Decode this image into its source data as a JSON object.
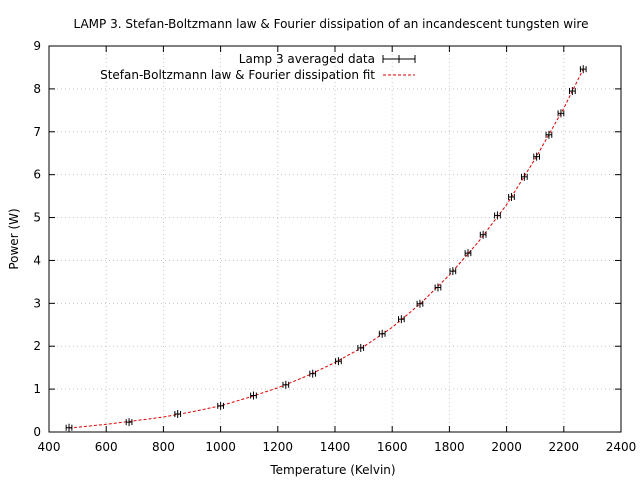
{
  "chart_data": {
    "type": "scatter",
    "title": "LAMP 3. Stefan-Boltzmann law & Fourier dissipation of an incandescent tungsten wire",
    "xlabel": "Temperature (Kelvin)",
    "ylabel": "Power (W)",
    "xlim": [
      400,
      2400
    ],
    "ylim": [
      0,
      9
    ],
    "xticks": [
      "400",
      "600",
      "800",
      "1000",
      "1200",
      "1400",
      "1600",
      "1800",
      "2000",
      "2200",
      "2400"
    ],
    "yticks": [
      "0",
      "1",
      "2",
      "3",
      "4",
      "5",
      "6",
      "7",
      "8",
      "9"
    ],
    "grid": true,
    "legend_position": "top-center",
    "series": [
      {
        "name": "Lamp 3 averaged data",
        "style": "points-with-xerrorbars",
        "color": "#000000",
        "x": [
          470,
          680,
          850,
          1000,
          1115,
          1228,
          1322,
          1412,
          1490,
          1565,
          1632,
          1697,
          1760,
          1812,
          1865,
          1918,
          1968,
          2017,
          2062,
          2105,
          2148,
          2190,
          2230,
          2268
        ],
        "y": [
          0.1,
          0.23,
          0.42,
          0.61,
          0.85,
          1.1,
          1.36,
          1.65,
          1.96,
          2.29,
          2.63,
          2.99,
          3.37,
          3.75,
          4.17,
          4.6,
          5.05,
          5.48,
          5.95,
          6.42,
          6.93,
          7.43,
          7.95,
          8.46
        ],
        "xerr": [
          10,
          10,
          10,
          10,
          10,
          10,
          10,
          10,
          10,
          10,
          10,
          10,
          10,
          10,
          10,
          10,
          10,
          10,
          10,
          10,
          10,
          10,
          10,
          10
        ]
      },
      {
        "name": "Stefan-Boltzmann law & Fourier dissipation fit",
        "style": "dashed-line",
        "color": "#e00000",
        "x": [
          470,
          600,
          700,
          800,
          900,
          1000,
          1100,
          1200,
          1300,
          1400,
          1500,
          1600,
          1700,
          1800,
          1900,
          2000,
          2100,
          2200,
          2268
        ],
        "y": [
          0.09,
          0.18,
          0.26,
          0.35,
          0.47,
          0.61,
          0.81,
          1.03,
          1.3,
          1.62,
          1.99,
          2.44,
          3.0,
          3.66,
          4.42,
          5.3,
          6.37,
          7.55,
          8.46
        ]
      }
    ]
  }
}
